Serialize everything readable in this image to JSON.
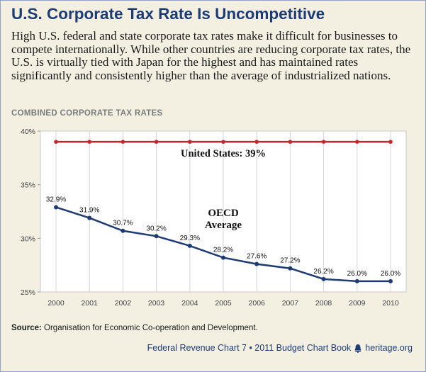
{
  "title": "U.S. Corporate Tax Rate Is Uncompetitive",
  "intro": "High U.S. federal and state corporate tax rates make it difficult for businesses to compete internationally. While other countries are reducing corporate tax rates, the U.S. is virtually tied with Japan for the highest and has maintained rates significantly and consistently higher than the average of industrialized nations.",
  "subhead": "COMBINED CORPORATE TAX RATES",
  "source": {
    "label": "Source:",
    "text": " Organisation for Economic Co-operation and Development."
  },
  "footer": {
    "text": "Federal Revenue Chart 7 • 2011 Budget Chart Book",
    "site": "heritage.org",
    "icon": "bell-icon"
  },
  "colors": {
    "us_line": "#c4262e",
    "oecd_line": "#1e3c73",
    "title": "#1e3c73"
  },
  "chart_data": {
    "type": "line",
    "title": "COMBINED CORPORATE TAX RATES",
    "xlabel": "",
    "ylabel": "",
    "x": [
      "2000",
      "2001",
      "2002",
      "2003",
      "2004",
      "2005",
      "2006",
      "2007",
      "2008",
      "2009",
      "2010"
    ],
    "ylim": [
      25,
      40
    ],
    "yticks": [
      "25%",
      "30%",
      "35%",
      "40%"
    ],
    "grid": "vertical",
    "series": [
      {
        "name": "United States: 39%",
        "values": [
          39,
          39,
          39,
          39,
          39,
          39,
          39,
          39,
          39,
          39,
          39
        ]
      },
      {
        "name": "OECD Average",
        "values": [
          32.9,
          31.9,
          30.7,
          30.2,
          29.3,
          28.2,
          27.6,
          27.2,
          26.2,
          26.0,
          26.0
        ],
        "labels": [
          "32.9%",
          "31.9%",
          "30.7%",
          "30.2%",
          "29.3%",
          "28.2%",
          "27.6%",
          "27.2%",
          "26.2%",
          "26.0%",
          "26.0%"
        ]
      }
    ],
    "annotations": {
      "us": "United States: 39%",
      "oecd_line1": "OECD",
      "oecd_line2": "Average"
    }
  }
}
